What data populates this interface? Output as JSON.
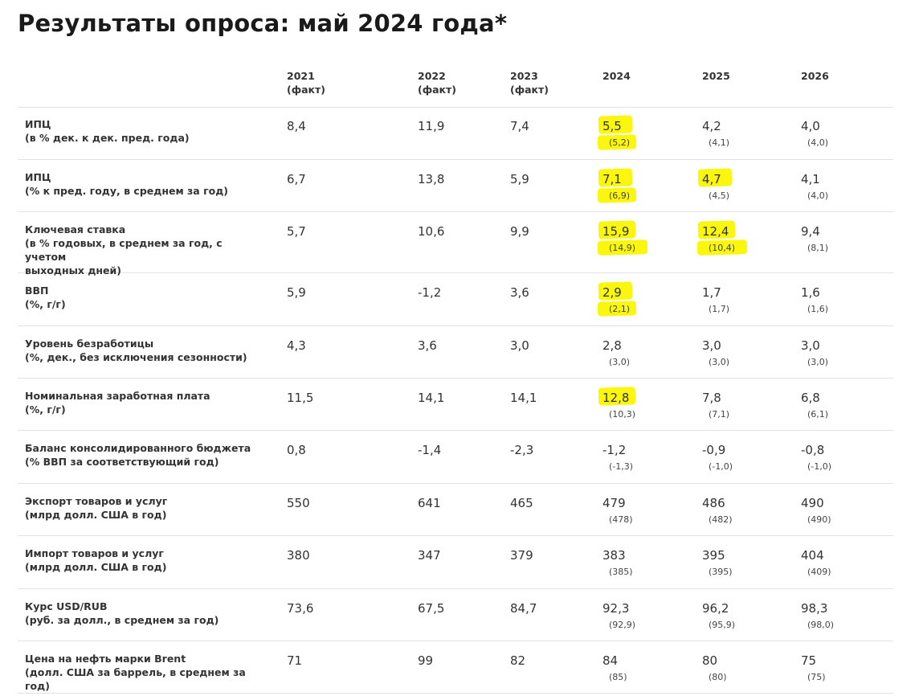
{
  "title": "Результаты опроса: май 2024 года*",
  "columns": [
    {
      "year": "2021",
      "note": "(факт)"
    },
    {
      "year": "2022",
      "note": "(факт)"
    },
    {
      "year": "2023",
      "note": "(факт)"
    },
    {
      "year": "2024",
      "note": ""
    },
    {
      "year": "2025",
      "note": ""
    },
    {
      "year": "2026",
      "note": ""
    }
  ],
  "rows": [
    {
      "label": [
        "ИПЦ",
        "(в % дек. к дек. пред. года)"
      ],
      "fact": [
        "8,4",
        "11,9",
        "7,4"
      ],
      "forecast": [
        {
          "v": "5,5",
          "p": "(5,2)"
        },
        {
          "v": "4,2",
          "p": "(4,1)"
        },
        {
          "v": "4,0",
          "p": "(4,0)"
        }
      ]
    },
    {
      "label": [
        "ИПЦ",
        "(% к пред. году, в среднем за год)"
      ],
      "fact": [
        "6,7",
        "13,8",
        "5,9"
      ],
      "forecast": [
        {
          "v": "7,1",
          "p": "(6,9)"
        },
        {
          "v": "4,7",
          "p": "(4,5)"
        },
        {
          "v": "4,1",
          "p": "(4,0)"
        }
      ]
    },
    {
      "label": [
        "Ключевая ставка",
        "(в % годовых, в среднем за год, с учетом",
        "выходных дней)"
      ],
      "fact": [
        "5,7",
        "10,6",
        "9,9"
      ],
      "forecast": [
        {
          "v": "15,9",
          "p": "(14,9)"
        },
        {
          "v": "12,4",
          "p": "(10,4)"
        },
        {
          "v": "9,4",
          "p": "(8,1)"
        }
      ]
    },
    {
      "label": [
        "ВВП",
        "(%, г/г)"
      ],
      "fact": [
        "5,9",
        "-1,2",
        "3,6"
      ],
      "forecast": [
        {
          "v": "2,9",
          "p": "(2,1)"
        },
        {
          "v": "1,7",
          "p": "(1,7)"
        },
        {
          "v": "1,6",
          "p": "(1,6)"
        }
      ]
    },
    {
      "label": [
        "Уровень безработицы",
        "(%, дек., без исключения сезонности)"
      ],
      "fact": [
        "4,3",
        "3,6",
        "3,0"
      ],
      "forecast": [
        {
          "v": "2,8",
          "p": "(3,0)"
        },
        {
          "v": "3,0",
          "p": "(3,0)"
        },
        {
          "v": "3,0",
          "p": "(3,0)"
        }
      ]
    },
    {
      "label": [
        "Номинальная заработная плата",
        "(%, г/г)"
      ],
      "fact": [
        "11,5",
        "14,1",
        "14,1"
      ],
      "forecast": [
        {
          "v": "12,8",
          "p": "(10,3)"
        },
        {
          "v": "7,8",
          "p": "(7,1)"
        },
        {
          "v": "6,8",
          "p": "(6,1)"
        }
      ]
    },
    {
      "label": [
        "Баланс консолидированного бюджета",
        "(% ВВП за соответствующий год)"
      ],
      "fact": [
        "0,8",
        "-1,4",
        "-2,3"
      ],
      "forecast": [
        {
          "v": "-1,2",
          "p": "(-1,3)"
        },
        {
          "v": "-0,9",
          "p": "(-1,0)"
        },
        {
          "v": "-0,8",
          "p": "(-1,0)"
        }
      ]
    },
    {
      "label": [
        "Экспорт товаров и услуг",
        "(млрд долл. США в год)"
      ],
      "fact": [
        "550",
        "641",
        "465"
      ],
      "forecast": [
        {
          "v": "479",
          "p": "(478)"
        },
        {
          "v": "486",
          "p": "(482)"
        },
        {
          "v": "490",
          "p": "(490)"
        }
      ]
    },
    {
      "label": [
        "Импорт товаров и услуг",
        "(млрд долл. США в год)"
      ],
      "fact": [
        "380",
        "347",
        "379"
      ],
      "forecast": [
        {
          "v": "383",
          "p": "(385)"
        },
        {
          "v": "395",
          "p": "(395)"
        },
        {
          "v": "404",
          "p": "(409)"
        }
      ]
    },
    {
      "label": [
        "Курс USD/RUB",
        "(руб. за долл., в среднем за год)"
      ],
      "fact": [
        "73,6",
        "67,5",
        "84,7"
      ],
      "forecast": [
        {
          "v": "92,3",
          "p": "(92,9)"
        },
        {
          "v": "96,2",
          "p": "(95,9)"
        },
        {
          "v": "98,3",
          "p": "(98,0)"
        }
      ]
    },
    {
      "label": [
        "Цена на нефть марки Brent",
        "(долл. США за баррель, в среднем за год)"
      ],
      "fact": [
        "71",
        "99",
        "82"
      ],
      "forecast": [
        {
          "v": "84",
          "p": "(85)"
        },
        {
          "v": "80",
          "p": "(80)"
        },
        {
          "v": "75",
          "p": "(75)"
        }
      ]
    }
  ],
  "highlight_color": "#fbf500"
}
